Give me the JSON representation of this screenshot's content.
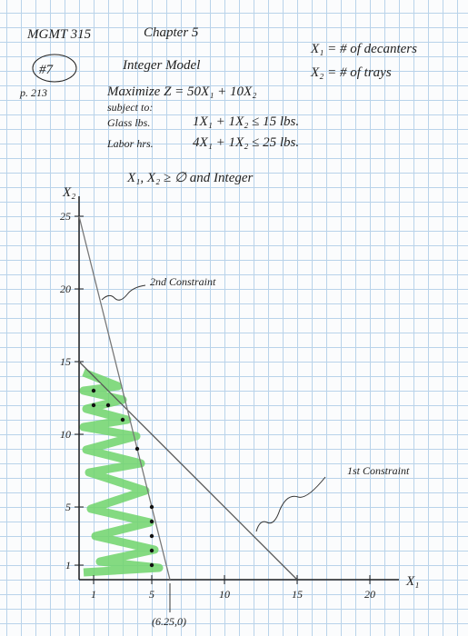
{
  "header": {
    "course": "MGMT 315",
    "chapter": "Chapter 5",
    "problem": "#7",
    "model": "Integer Model",
    "page": "p. 213",
    "objective": "Maximize Z = 50X₁ + 10X₂",
    "subject_to": "subject to:",
    "constraint_1_name": "Glass lbs.",
    "constraint_1": "1X₁ + 1X₂ ≤ 15 lbs.",
    "constraint_2_name": "Labor hrs.",
    "constraint_2": "4X₁ + 1X₂ ≤ 25 lbs.",
    "nonnegativity": "X₁, X₂ ≥ ∅ and Integer",
    "var_1": "X₁ = # of decanters",
    "var_2": "X₂ = # of trays"
  },
  "chart_data": {
    "type": "line",
    "x_label": "X₁",
    "y_label": "X₂",
    "series": [
      {
        "name": "1st Constraint",
        "color": "#555555",
        "x": [
          0,
          15
        ],
        "values": [
          15,
          0
        ]
      },
      {
        "name": "2nd Constraint",
        "color": "#777777",
        "x": [
          0,
          6.25
        ],
        "values": [
          25,
          0
        ]
      }
    ],
    "integer_points": {
      "color": "#111111",
      "x": [
        1,
        1,
        2,
        3,
        4,
        5,
        5,
        5,
        5,
        5
      ],
      "values": [
        13,
        12,
        12,
        11,
        9,
        5,
        4,
        3,
        2,
        1
      ]
    },
    "intercept_label": "(6.25,0)",
    "xlim": [
      0,
      22
    ],
    "ylim": [
      0,
      26
    ],
    "xticks": [
      1,
      5,
      10,
      15,
      20
    ],
    "yticks": [
      1,
      5,
      10,
      15,
      20,
      25
    ]
  }
}
